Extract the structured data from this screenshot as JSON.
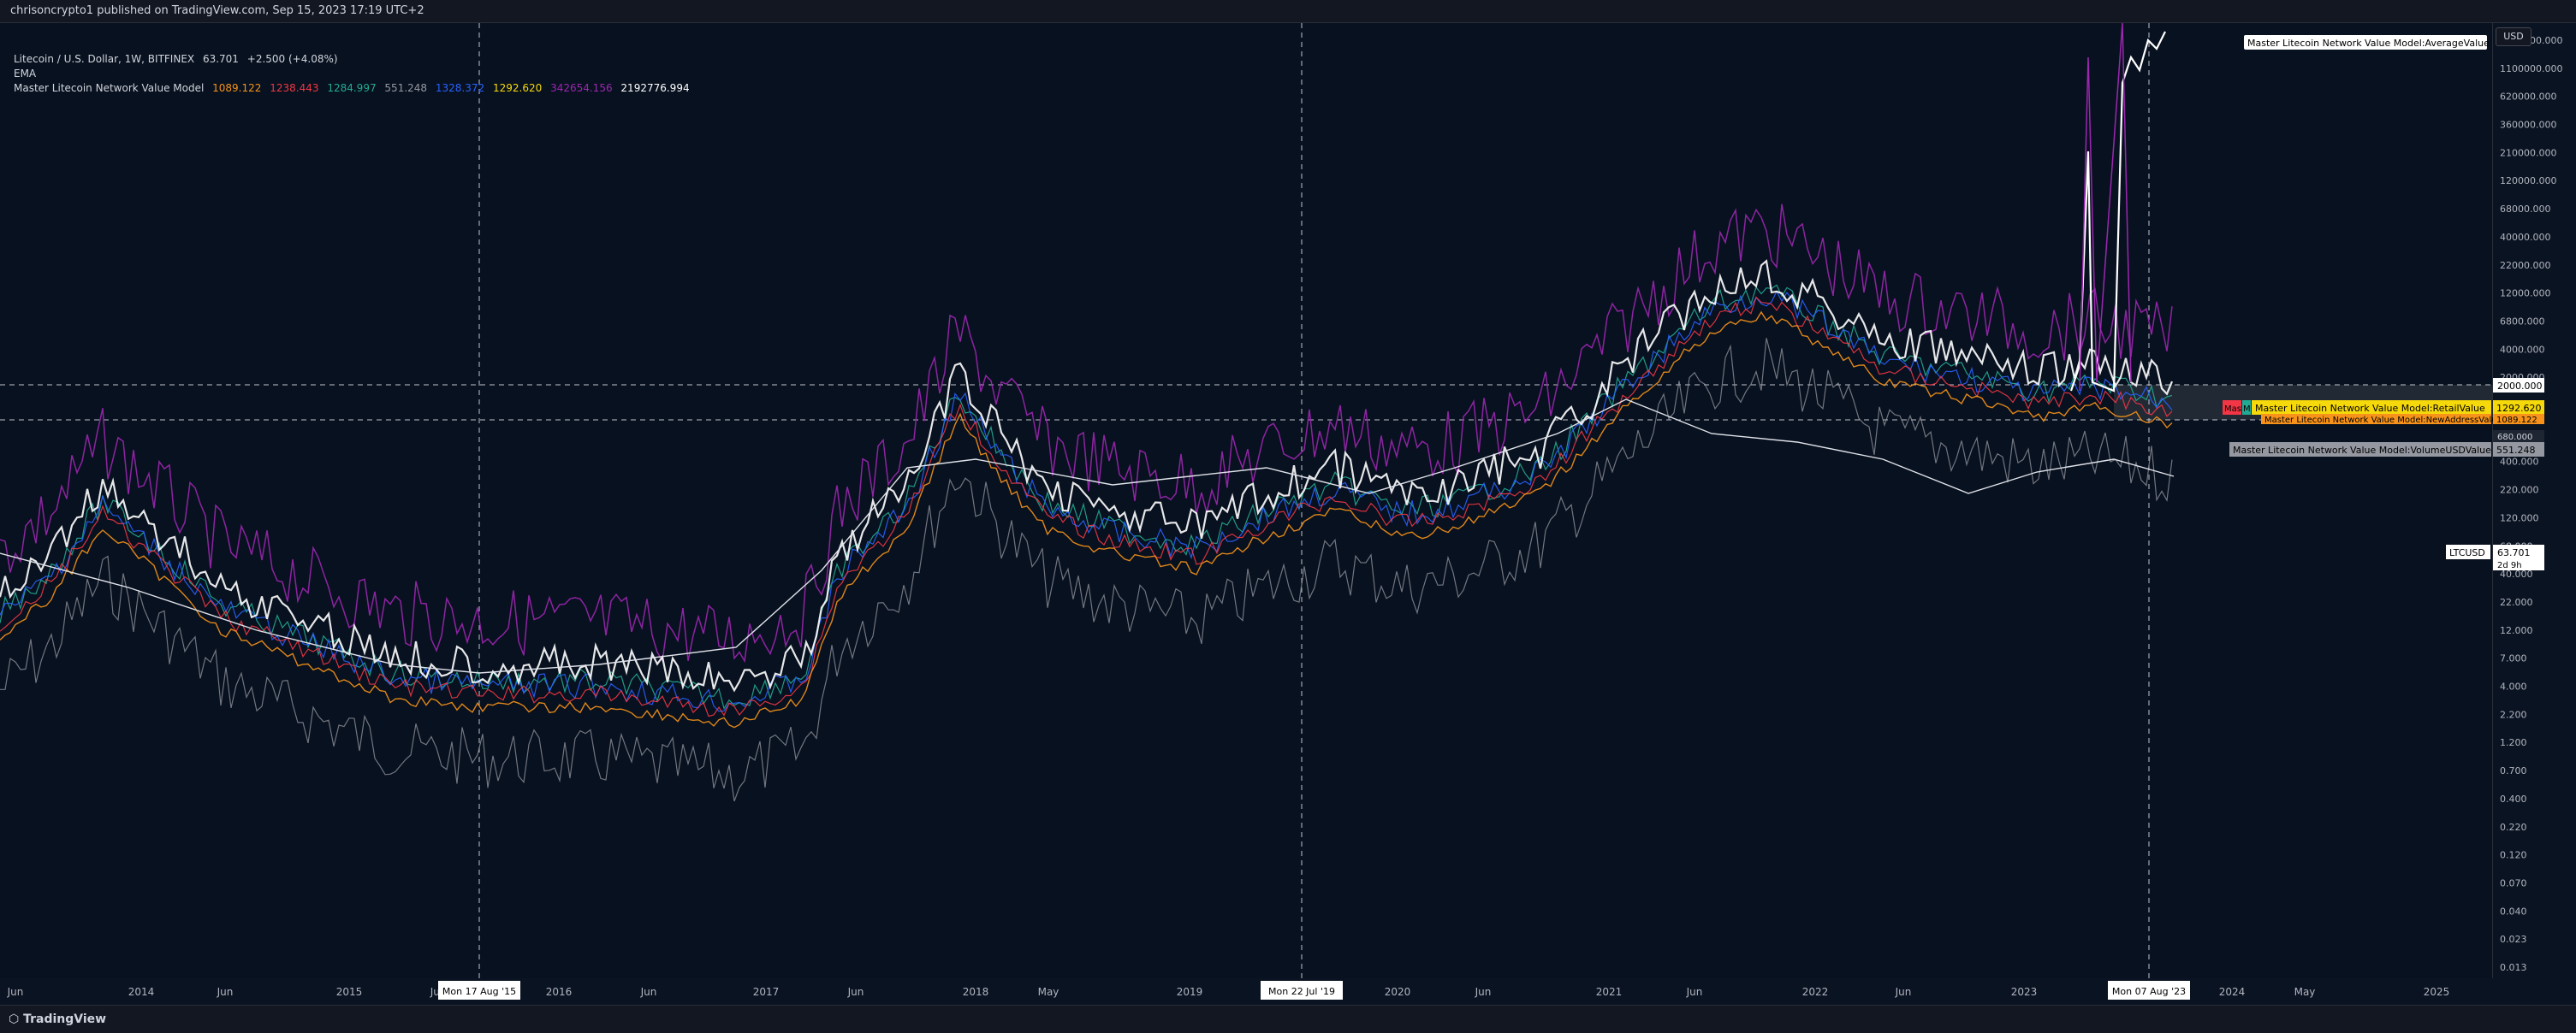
{
  "header": {
    "published": "chrisoncrypto1 published on TradingView.com, Sep 15, 2023 17:19 UTC+2"
  },
  "legend": {
    "symbol": "Litecoin / U.S. Dollar, 1W, BITFINEX",
    "price": "63.701",
    "change": "+2.500 (+4.08%)",
    "ema": "EMA",
    "model_name": "Master Litecoin Network Value Model",
    "model_values": [
      {
        "text": "1089.122",
        "color": "#f7931a"
      },
      {
        "text": "1238.443",
        "color": "#f23645"
      },
      {
        "text": "1284.997",
        "color": "#22ab94"
      },
      {
        "text": "551.248",
        "color": "#9598a1"
      },
      {
        "text": "1328.372",
        "color": "#2962ff"
      },
      {
        "text": "1292.620",
        "color": "#f5d90a"
      },
      {
        "text": "342654.156",
        "color": "#9c27b0"
      },
      {
        "text": "2192776.994",
        "color": "#ffffff"
      }
    ]
  },
  "price_axis": {
    "currency": "USD",
    "ticks": [
      "1700000.000",
      "1100000.000",
      "620000.000",
      "360000.000",
      "210000.000",
      "120000.000",
      "68000.000",
      "40000.000",
      "22000.000",
      "12000.000",
      "6800.000",
      "4000.000",
      "2000.000",
      "1200.000",
      "680.000",
      "400.000",
      "220.000",
      "120.000",
      "68.000",
      "40.000",
      "22.000",
      "12.000",
      "7.000",
      "4.000",
      "2.200",
      "1.200",
      "0.700",
      "0.400",
      "0.220",
      "0.120",
      "0.070",
      "0.040",
      "0.023",
      "0.013"
    ]
  },
  "time_axis": {
    "labels": [
      "Jun",
      "2014",
      "Jun",
      "2015",
      "Jul",
      "2016",
      "Jun",
      "2017",
      "Jun",
      "2018",
      "May",
      "2019",
      "2020",
      "Jun",
      "2021",
      "Jun",
      "2022",
      "Jun",
      "2023",
      "2024",
      "May",
      "2025"
    ],
    "crosshair_dates": [
      "Mon 17 Aug '15",
      "Mon 22 Jul '19",
      "Mon 07 Aug '23"
    ]
  },
  "price_labels": {
    "average_value": "Master Litecoin Network Value Model:AverageValue",
    "retail_value": "Master Litecoin Network Value Model:RetailValue",
    "retail_value_num": "1292.620",
    "retail_badge": "Mast",
    "retail_badge2": "M",
    "new_address_value": "Master Litecoin Network Value Model:NewAddressValue",
    "new_address_num": "1089.122",
    "volume_value": "Master Litecoin Network Value Model:VolumeUSDValue",
    "volume_num": "551.248",
    "horizontal_level": "2000.000",
    "ltcusd_label": "LTCUSD",
    "ltcusd_price": "63.701",
    "ltcusd_countdown": "2d 9h",
    "partial_label": "680.000"
  },
  "footer": {
    "brand": "TradingView"
  },
  "colors": {
    "background": "#08111f",
    "white_series": "#ffffff",
    "purple_series": "#9c27b0",
    "green_series": "#22ab94",
    "blue_series": "#2962ff",
    "orange_series": "#f7931a",
    "red_series": "#f23645",
    "yellow_series": "#f5d90a",
    "gray_series": "#9598a1"
  }
}
